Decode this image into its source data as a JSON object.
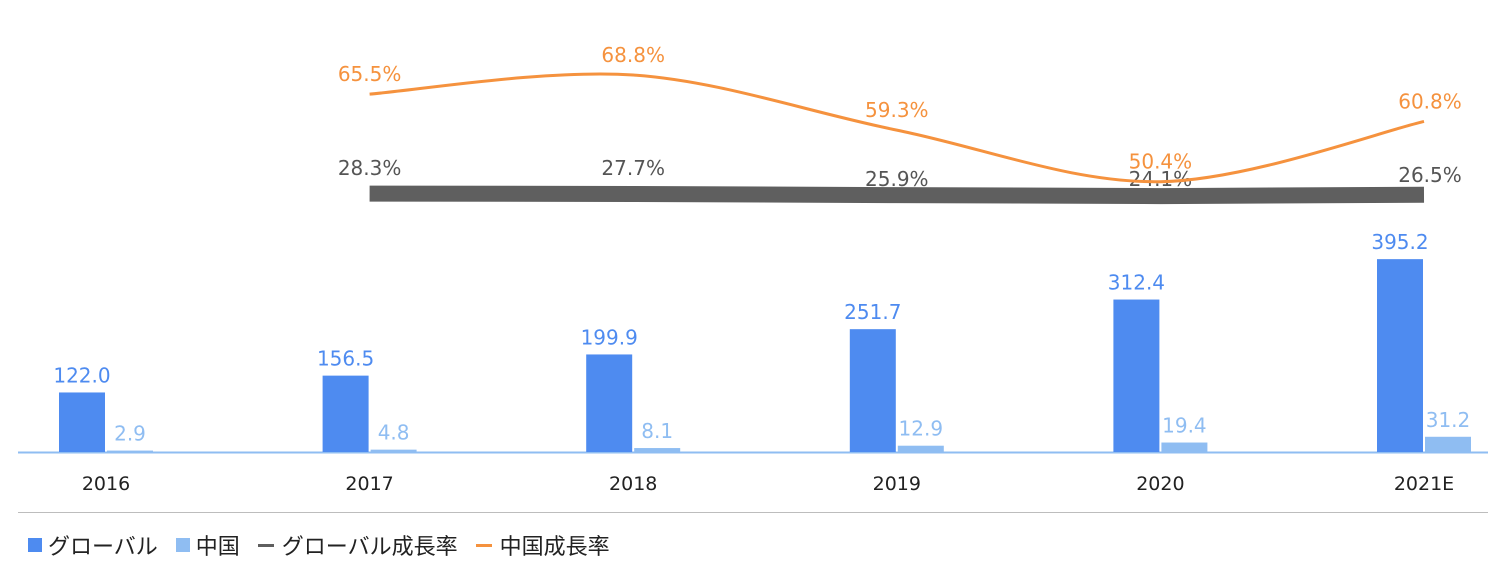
{
  "chart_data": {
    "type": "bar",
    "categories": [
      "2016",
      "2017",
      "2018",
      "2019",
      "2020",
      "2021E"
    ],
    "series": [
      {
        "name": "グローバル",
        "kind": "bar",
        "color": "#4e8bf0",
        "values": [
          122.0,
          156.5,
          199.9,
          251.7,
          312.4,
          395.2
        ],
        "labels": [
          "122.0",
          "156.5",
          "199.9",
          "251.7",
          "312.4",
          "395.2"
        ]
      },
      {
        "name": "中国",
        "kind": "bar",
        "color": "#8fbdf2",
        "values": [
          2.9,
          4.8,
          8.1,
          12.9,
          19.4,
          31.2
        ],
        "labels": [
          "2.9",
          "4.8",
          "8.1",
          "12.9",
          "19.4",
          "31.2"
        ]
      },
      {
        "name": "グローバル成長率",
        "kind": "line",
        "color": "#5f5f5f",
        "values": [
          null,
          28.3,
          27.7,
          25.9,
          24.1,
          26.5
        ],
        "labels": [
          "",
          "28.3%",
          "27.7%",
          "25.9%",
          "24.1%",
          "26.5%"
        ]
      },
      {
        "name": "中国成長率",
        "kind": "line",
        "color": "#f5923e",
        "values": [
          null,
          65.5,
          68.8,
          59.3,
          50.4,
          60.8
        ],
        "labels": [
          "",
          "65.5%",
          "68.8%",
          "59.3%",
          "50.4%",
          "60.8%"
        ]
      }
    ],
    "grid": false,
    "legend_position": "bottom-left"
  },
  "colors": {
    "axis": "#8fbdf2",
    "category_text": "#222222"
  }
}
